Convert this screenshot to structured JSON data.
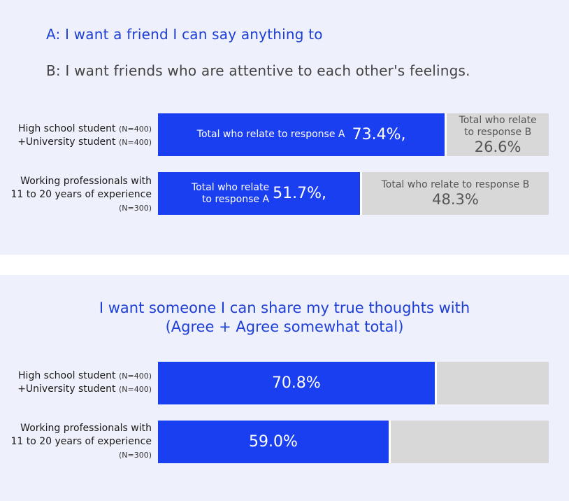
{
  "legend": {
    "line_a": "A: I want a friend I can say anything to",
    "line_b": "B: I want friends who are attentive to each other's feelings.",
    "color_a": "#1d3fd6",
    "color_b": "#444444"
  },
  "chart_data": [
    {
      "type": "bar",
      "orientation": "horizontal",
      "stacked": true,
      "title": "",
      "categories": [
        "High school student (N=400) +University student (N=400)",
        "Working professionals with 11 to 20 years of experience (N=300)"
      ],
      "series": [
        {
          "name": "Total who relate to response A",
          "values": [
            73.4,
            51.7
          ],
          "color": "#1a3ff0"
        },
        {
          "name": "Total who relate to response B",
          "values": [
            26.6,
            48.3
          ],
          "color": "#d8d8d8"
        }
      ],
      "value_labels_a": [
        "73.4%,",
        "51.7%,"
      ],
      "value_labels_b": [
        "26.6%",
        "48.3%"
      ],
      "xlim": [
        0,
        100
      ]
    },
    {
      "type": "bar",
      "orientation": "horizontal",
      "title": "I want someone I can share my true thoughts with",
      "subtitle": "(Agree + Agree somewhat total)",
      "categories": [
        "High school student (N=400) +University student (N=400)",
        "Working professionals with 11 to 20 years of experience (N=300)"
      ],
      "series": [
        {
          "name": "",
          "values": [
            70.8,
            59.0
          ],
          "color": "#1a3ff0"
        }
      ],
      "value_labels": [
        "70.8%",
        "59.0%"
      ],
      "xlim": [
        0,
        100
      ]
    }
  ],
  "labels": {
    "group1_l1": "High school student",
    "group1_n1": "(N=400)",
    "group1_l2": "+University student",
    "group1_n2": "(N=400)",
    "group2_l1": "Working professionals with",
    "group2_l2": "11 to 20 years of experience",
    "group2_n": "(N=300)",
    "a_label_row1": "Total who relate to response A",
    "a_label_row2_l1": "Total who relate",
    "a_label_row2_l2": "to response A",
    "b_label_row1_l1": "Total who relate",
    "b_label_row1_l2": "to response B",
    "b_label_row2": "Total who relate to response B"
  }
}
